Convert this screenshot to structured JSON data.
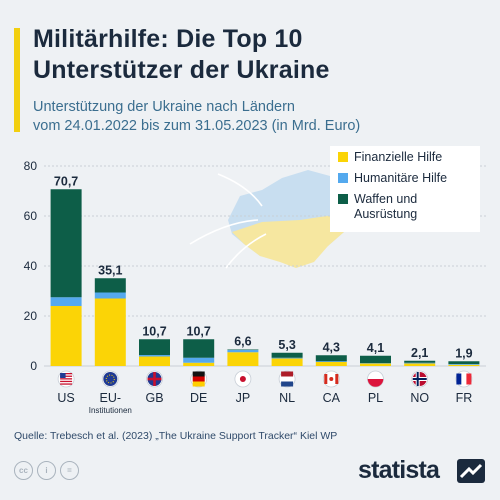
{
  "header": {
    "title_line1": "Militärhilfe: Die Top 10",
    "title_line2": "Unterstützer der Ukraine",
    "subtitle_line1": "Unterstützung der Ukraine nach Ländern",
    "subtitle_line2": "vom 24.01.2022 bis zum 31.05.2023 (in Mrd. Euro)"
  },
  "colors": {
    "financial": "#fbd406",
    "humanitarian": "#54a9ee",
    "weapons": "#0d5e48",
    "grid": "#c9d0d6",
    "axis_text": "#1b2a3d",
    "ukraine_blue": "#c8def0",
    "ukraine_yellow": "#f6e7a0"
  },
  "chart_data": {
    "type": "bar",
    "stacked": true,
    "categories": [
      "US",
      "EU-Institutionen",
      "GB",
      "DE",
      "JP",
      "NL",
      "CA",
      "PL",
      "NO",
      "FR"
    ],
    "category_labels": [
      {
        "line1": "US",
        "line2": ""
      },
      {
        "line1": "EU-",
        "line2": "Institutionen"
      },
      {
        "line1": "GB",
        "line2": ""
      },
      {
        "line1": "DE",
        "line2": ""
      },
      {
        "line1": "JP",
        "line2": ""
      },
      {
        "line1": "NL",
        "line2": ""
      },
      {
        "line1": "CA",
        "line2": ""
      },
      {
        "line1": "PL",
        "line2": ""
      },
      {
        "line1": "NO",
        "line2": ""
      },
      {
        "line1": "FR",
        "line2": ""
      }
    ],
    "flag_icons": [
      "flag-us-icon",
      "flag-eu-icon",
      "flag-gb-icon",
      "flag-de-icon",
      "flag-jp-icon",
      "flag-nl-icon",
      "flag-ca-icon",
      "flag-pl-icon",
      "flag-no-icon",
      "flag-fr-icon"
    ],
    "series": [
      {
        "name": "Finanzielle Hilfe",
        "values": [
          24.0,
          27.0,
          3.8,
          1.3,
          5.5,
          3.0,
          1.6,
          1.0,
          1.0,
          0.5
        ]
      },
      {
        "name": "Humanitäre Hilfe",
        "values": [
          3.5,
          2.4,
          0.6,
          2.0,
          0.9,
          0.3,
          0.3,
          0.2,
          0.3,
          0.3
        ]
      },
      {
        "name": "Waffen und Ausrüstung",
        "values": [
          43.2,
          5.7,
          6.3,
          7.4,
          0.2,
          2.0,
          2.4,
          2.9,
          0.8,
          1.1
        ]
      }
    ],
    "legend": [
      {
        "line1": "Finanzielle Hilfe",
        "line2": ""
      },
      {
        "line1": "Humanitäre Hilfe",
        "line2": ""
      },
      {
        "line1": "Waffen und",
        "line2": "Ausrüstung"
      }
    ],
    "totals": [
      "70,7",
      "35,1",
      "10,7",
      "10,7",
      "6,6",
      "5,3",
      "4,3",
      "4,1",
      "2,1",
      "1,9"
    ],
    "total_values": [
      70.7,
      35.1,
      10.7,
      10.7,
      6.6,
      5.3,
      4.3,
      4.1,
      2.1,
      1.9
    ],
    "yticks": [
      0,
      20,
      40,
      60,
      80
    ],
    "ylim": [
      0,
      80
    ],
    "grid": true,
    "legend_position": "top-right"
  },
  "footer": {
    "source": "Quelle: Trebesch et al. (2023) „The Ukraine Support Tracker“ Kiel WP",
    "brand": "statista",
    "license_icons": [
      "cc-icon",
      "info-icon",
      "equals-icon"
    ]
  }
}
